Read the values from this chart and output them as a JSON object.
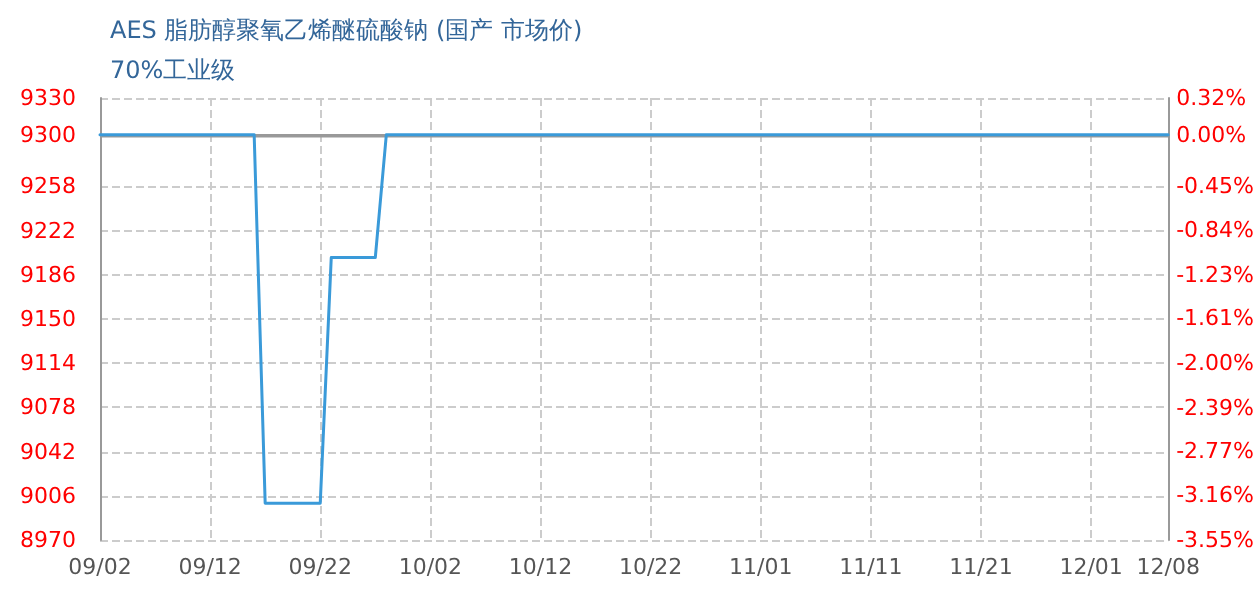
{
  "chart_data": {
    "type": "line",
    "title": "AES 脂肪醇聚氧乙烯醚硫酸钠 (国产 市场价)",
    "subtitle": "70%工业级",
    "x": [
      "--09-02",
      "--09-16",
      "--09-17",
      "--09-22",
      "--09-23",
      "--09-27",
      "--09-28",
      "--12-08"
    ],
    "series": [
      {
        "color": "#3a9ad9",
        "values": [
          9300,
          9300,
          9000,
          9000,
          9200,
          9200,
          9300,
          9300
        ]
      }
    ],
    "xlim": [
      "--09-02",
      "--12-08"
    ],
    "xticks": [
      {
        "value": "--09-02",
        "label": "09/02"
      },
      {
        "value": "--09-12",
        "label": "09/12"
      },
      {
        "value": "--09-22",
        "label": "09/22"
      },
      {
        "value": "--10-02",
        "label": "10/02"
      },
      {
        "value": "--10-12",
        "label": "10/12"
      },
      {
        "value": "--10-22",
        "label": "10/22"
      },
      {
        "value": "--11-01",
        "label": "11/01"
      },
      {
        "value": "--11-11",
        "label": "11/11"
      },
      {
        "value": "--11-21",
        "label": "11/21"
      },
      {
        "value": "--12-01",
        "label": "12/01"
      },
      {
        "value": "--12-08",
        "label": "12/08"
      }
    ],
    "ylim": [
      8970,
      9330
    ],
    "yticks": [
      8970,
      9006,
      9042,
      9078,
      9114,
      9150,
      9186,
      9222,
      9258,
      9300,
      9330
    ],
    "y2lim": [
      -3.55,
      0.32
    ],
    "y2ticks": [
      {
        "value": -3.55,
        "label": "-3.55%"
      },
      {
        "value": -3.16,
        "label": "-3.16%"
      },
      {
        "value": -2.77,
        "label": "-2.77%"
      },
      {
        "value": -2.39,
        "label": "-2.39%"
      },
      {
        "value": -2.0,
        "label": "-2.00%"
      },
      {
        "value": -1.61,
        "label": "-1.61%"
      },
      {
        "value": -1.23,
        "label": "-1.23%"
      },
      {
        "value": -0.84,
        "label": "-0.84%"
      },
      {
        "value": -0.45,
        "label": "-0.45%"
      },
      {
        "value": 0,
        "label": "0.00%"
      },
      {
        "value": 0.32,
        "label": "0.32%"
      }
    ],
    "ref_lines": [
      {
        "axis": "y",
        "value": 9300,
        "color": "#999999"
      }
    ],
    "grid": true,
    "marker": "none",
    "line_style": "solid"
  }
}
